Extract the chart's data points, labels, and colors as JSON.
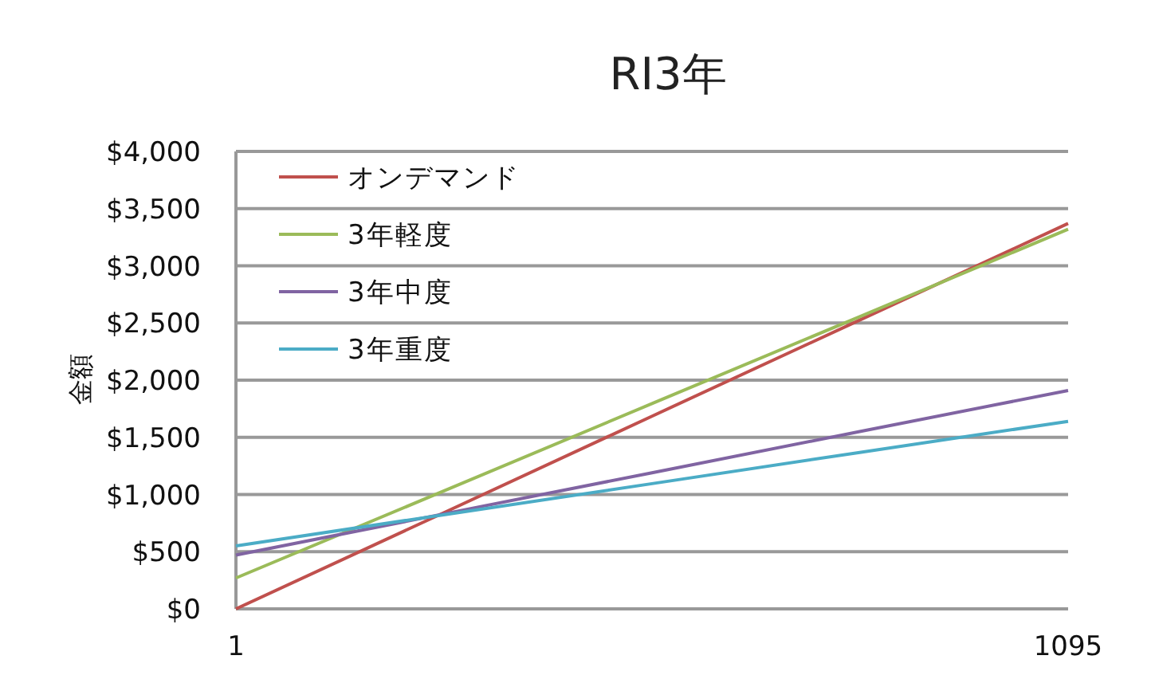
{
  "chart_data": {
    "type": "line",
    "title": "RI3年",
    "ylabel": "金額",
    "x": [
      1,
      274,
      548,
      821,
      1095
    ],
    "series": [
      {
        "name": "オンデマンド",
        "color": "#c0504d",
        "values": [
          0,
          840,
          1685,
          2525,
          3370
        ]
      },
      {
        "name": "3年軽度",
        "color": "#9bbb59",
        "values": [
          270,
          1030,
          1795,
          2555,
          3320
        ]
      },
      {
        "name": "3年中度",
        "color": "#8064a2",
        "values": [
          470,
          830,
          1190,
          1550,
          1910
        ]
      },
      {
        "name": "3年重度",
        "color": "#4bacc6",
        "values": [
          550,
          823,
          1095,
          1368,
          1640
        ]
      }
    ],
    "xlim": [
      1,
      1095
    ],
    "xticks": [
      1,
      1095
    ],
    "ylim": [
      0,
      4000
    ],
    "yticks": [
      {
        "value": 0,
        "label": "$0"
      },
      {
        "value": 500,
        "label": "$500"
      },
      {
        "value": 1000,
        "label": "$1,000"
      },
      {
        "value": 1500,
        "label": "$1,500"
      },
      {
        "value": 2000,
        "label": "$2,000"
      },
      {
        "value": 2500,
        "label": "$2,500"
      },
      {
        "value": 3000,
        "label": "$3,000"
      },
      {
        "value": 3500,
        "label": "$3,500"
      },
      {
        "value": 4000,
        "label": "$4,000"
      }
    ],
    "grid": "y",
    "legend": "top left"
  }
}
